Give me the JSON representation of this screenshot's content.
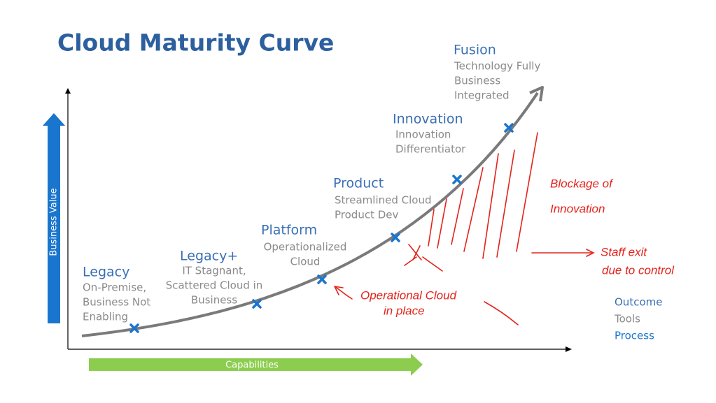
{
  "title": "Cloud Maturity Curve",
  "axes": {
    "y_label": "Business Value",
    "x_label": "Capabilities"
  },
  "stages": [
    {
      "name": "Legacy",
      "description": [
        "On-Premise,",
        "Business Not",
        "Enabling"
      ]
    },
    {
      "name": "Legacy+",
      "description": [
        "IT Stagnant,",
        "Scattered Cloud in",
        "Business"
      ]
    },
    {
      "name": "Platform",
      "description": [
        "Operationalized",
        "Cloud"
      ]
    },
    {
      "name": "Product",
      "description": [
        "Streamlined Cloud",
        "Product Dev"
      ]
    },
    {
      "name": "Innovation",
      "description": [
        "Innovation",
        "Differentiator"
      ]
    },
    {
      "name": "Fusion",
      "description": [
        "Technology Fully",
        "Business",
        "Integrated"
      ]
    }
  ],
  "legend": [
    "Outcome",
    "Tools",
    "Process"
  ],
  "annotations": {
    "blockage": [
      "Blockage of",
      "Innovation"
    ],
    "staff_exit": [
      "Staff exit",
      "due to control"
    ],
    "operational": [
      "Operational Cloud",
      "in place"
    ]
  }
}
